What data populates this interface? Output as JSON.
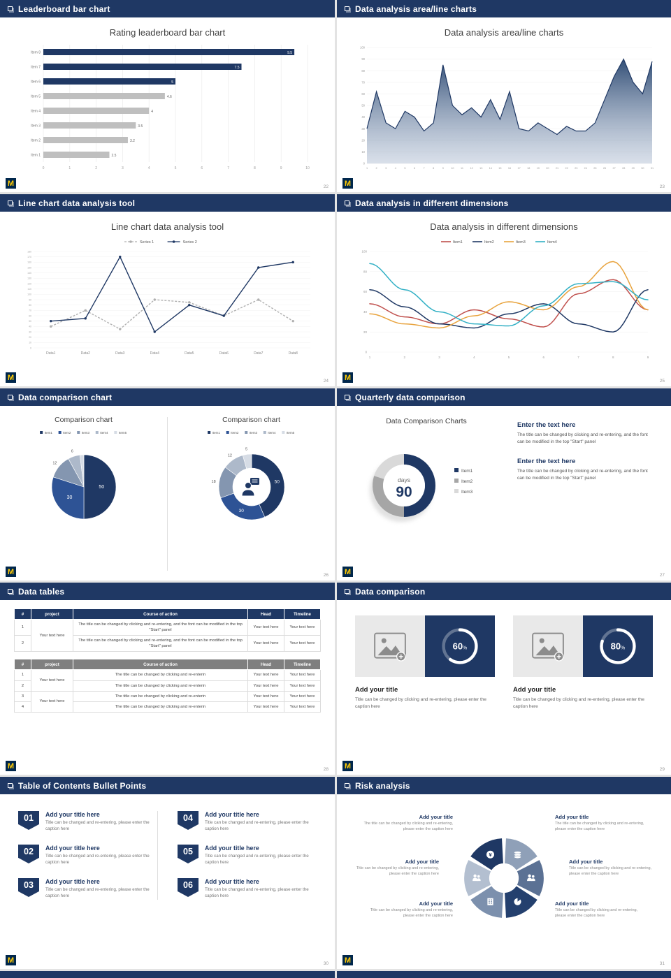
{
  "logo": {
    "letter": "M"
  },
  "icons": {
    "imgph": {
      "type": "imgph"
    }
  },
  "slides": [
    {
      "header": "Leaderboard bar chart",
      "page": "22",
      "title": "Rating leaderboard bar chart",
      "chart": {
        "type": "barh",
        "categories": [
          "Item 8",
          "Item 7",
          "Item 6",
          "Item 5",
          "Item 4",
          "Item 3",
          "Item 2",
          "Item 1"
        ],
        "values": [
          9.5,
          7.5,
          5,
          4.6,
          4,
          3.5,
          3.2,
          2.5
        ],
        "value_labels": [
          "9.5",
          "7.5",
          "5",
          "4.6",
          "4",
          "3.5",
          "3.2",
          "2.5"
        ],
        "colors": [
          "#1f3864",
          "#1f3864",
          "#1f3864",
          "#bfbfbf",
          "#bfbfbf",
          "#bfbfbf",
          "#bfbfbf",
          "#bfbfbf"
        ],
        "xmax": 10,
        "xticks": [
          0,
          1,
          2,
          3,
          4,
          5,
          6,
          7,
          8,
          9,
          10
        ]
      }
    },
    {
      "header": "Data analysis area/line charts",
      "page": "23",
      "title": "Data analysis area/line charts",
      "chart": {
        "type": "area",
        "values": [
          30,
          62,
          35,
          30,
          45,
          40,
          28,
          35,
          85,
          50,
          42,
          48,
          40,
          55,
          38,
          62,
          30,
          28,
          35,
          30,
          25,
          32,
          28,
          28,
          35,
          55,
          75,
          90,
          70,
          60,
          88
        ],
        "ymax": 100,
        "ystep": 10
      }
    },
    {
      "header": "Line chart data analysis tool",
      "page": "24",
      "title": "Line chart data analysis tool",
      "chart": {
        "type": "lines",
        "xlabels": [
          "Data1",
          "Data2",
          "Data3",
          "Data4",
          "Data5",
          "Data6",
          "Data7",
          "Data8"
        ],
        "ymax": 180,
        "ystep": 10,
        "series": [
          {
            "name": "Series 1",
            "color": "#b0b0b0",
            "dash": "3 2",
            "values": [
              40,
              70,
              35,
              90,
              85,
              60,
              90,
              50
            ]
          },
          {
            "name": "Series 2",
            "color": "#1f3864",
            "dash": "",
            "values": [
              50,
              55,
              170,
              30,
              80,
              60,
              150,
              160
            ]
          }
        ]
      }
    },
    {
      "header": "Data analysis in different dimensions",
      "page": "25",
      "title": "Data analysis in different dimensions",
      "chart": {
        "type": "multi",
        "xlabels": [
          "1",
          "2",
          "3",
          "4",
          "5",
          "6",
          "7",
          "8",
          "9"
        ],
        "ymax": 100,
        "ystep": 20,
        "series": [
          {
            "name": "Item1",
            "color": "#c0504d",
            "values": [
              48,
              35,
              28,
              42,
              33,
              25,
              58,
              72,
              42
            ]
          },
          {
            "name": "Item2",
            "color": "#1f3864",
            "values": [
              62,
              45,
              28,
              24,
              38,
              48,
              28,
              20,
              62
            ]
          },
          {
            "name": "Item3",
            "color": "#e8a33d",
            "values": [
              38,
              28,
              24,
              36,
              50,
              42,
              65,
              90,
              42
            ]
          },
          {
            "name": "Item4",
            "color": "#31b0c5",
            "values": [
              88,
              62,
              40,
              28,
              26,
              46,
              68,
              70,
              52
            ]
          }
        ]
      }
    },
    {
      "header": "Data comparison chart",
      "page": "26",
      "left": {
        "title": "Comparison chart",
        "chart": {
          "type": "pie",
          "values": [
            50,
            30,
            12,
            6,
            2
          ],
          "labels": [
            "50",
            "30",
            "12",
            "6",
            ""
          ],
          "colors": [
            "#1f3864",
            "#2e5395",
            "#8496b0",
            "#adb9ca",
            "#d6dce5"
          ],
          "legend": [
            "Item1",
            "Item2",
            "Item3",
            "Item4",
            "Item5"
          ]
        }
      },
      "right": {
        "title": "Comparison chart",
        "chart": {
          "type": "donut",
          "values": [
            50,
            30,
            18,
            12,
            5
          ],
          "labels": [
            "50",
            "30",
            "18",
            "12",
            "5"
          ],
          "colors": [
            "#1f3864",
            "#2e5395",
            "#8496b0",
            "#adb9ca",
            "#d6dce5"
          ],
          "legend": [
            "Item1",
            "Item2",
            "Item3",
            "Item4",
            "Item5"
          ]
        }
      }
    },
    {
      "header": "Quarterly data comparison",
      "page": "27",
      "chart_title": "Data Comparison Charts",
      "chart": {
        "type": "donut90",
        "values": [
          50,
          30,
          20
        ],
        "colors": [
          "#1f3864",
          "#a6a6a6",
          "#d9d9d9"
        ],
        "legend": [
          "Item1",
          "Item2",
          "Item3"
        ],
        "center_top": "days",
        "center_big": "90"
      },
      "blocks": [
        {
          "title": "Enter the text here",
          "body": "The title can be changed by clicking and re-entering, and the font can be modified in the top \"Start\" panel"
        },
        {
          "title": "Enter the text here",
          "body": "The title can be changed by clicking and re-entering, and the font can be modified in the top \"Start\" panel"
        }
      ]
    },
    {
      "header": "Data tables",
      "page": "28",
      "table1": {
        "headers": [
          "#",
          "project",
          "Course of action",
          "Head",
          "Timeline"
        ],
        "project": "Your text here",
        "rows": [
          {
            "num": "1",
            "course": "The title can be changed by clicking and re-entering, and the font can be modified in the top \"Start\" panel",
            "head": "Your text here",
            "timeline": "Your text here"
          },
          {
            "num": "2",
            "course": "The title can be changed by clicking and re-entering, and the font can be modified in the top \"Start\" panel",
            "head": "Your text here",
            "timeline": "Your text here"
          }
        ]
      },
      "table2": {
        "headers": [
          "#",
          "project",
          "Course of action",
          "Head",
          "Timeline"
        ],
        "projects": [
          "Your text here",
          "Your text here"
        ],
        "rows": [
          {
            "num": "1",
            "course": "The title can be changed by clicking and re-enterin",
            "head": "Your text here",
            "timeline": "Your text here"
          },
          {
            "num": "2",
            "course": "The title can be changed by clicking and re-enterin",
            "head": "Your text here",
            "timeline": "Your text here"
          },
          {
            "num": "3",
            "course": "The title can be changed by clicking and re-enterin",
            "head": "Your text here",
            "timeline": "Your text here"
          },
          {
            "num": "4",
            "course": "The title can be changed by clicking and re-enterin",
            "head": "Your text here",
            "timeline": "Your text here"
          }
        ]
      }
    },
    {
      "header": "Data comparison",
      "page": "29",
      "cards": [
        {
          "title": "Add your title",
          "caption": "Title can be changed by clicking and re-entering, please enter the caption here",
          "ring": {
            "type": "ring",
            "pct": 60
          }
        },
        {
          "title": "Add your title",
          "caption": "Title can be changed by clicking and re-entering, please enter the caption here",
          "ring": {
            "type": "ring",
            "pct": 80
          }
        }
      ]
    },
    {
      "header": "Table of Contents Bullet Points",
      "page": "30",
      "items": [
        {
          "num": "01",
          "title": "Add your title here",
          "caption": "Title can be changed and re-entering, please enter the caption here"
        },
        {
          "num": "02",
          "title": "Add your title here",
          "caption": "Title can be changed and re-entering, please enter the caption here"
        },
        {
          "num": "03",
          "title": "Add your title here",
          "caption": "Title can be changed and re-entering, please enter the caption here"
        },
        {
          "num": "04",
          "title": "Add your title here",
          "caption": "Title can be changed and re-entering, please enter the caption here"
        },
        {
          "num": "05",
          "title": "Add your title here",
          "caption": "Title can be changed and re-entering, please enter the caption here"
        },
        {
          "num": "06",
          "title": "Add your title here",
          "caption": "Title can be changed and re-entering, please enter the caption here"
        }
      ]
    },
    {
      "header": "Risk analysis",
      "page": "31",
      "wheel": {
        "type": "pinwheel",
        "colors": [
          "#1f3864",
          "#8fa0b8",
          "#5b7194",
          "#24406e",
          "#7c90ad",
          "#b3bfd0"
        ],
        "icons": [
          "money",
          "coins",
          "people",
          "pie",
          "building",
          "people"
        ]
      },
      "blocks": [
        {
          "title": "Add your title",
          "caption": "The title can be changed by clicking and re-entering, please enter the caption here"
        },
        {
          "title": "Add your title",
          "caption": "Title can be changed by clicking and re-entering, please enter the caption here"
        },
        {
          "title": "Add your title",
          "caption": "Title can be changed by clicking and re-entering, please enter the caption here"
        },
        {
          "title": "Add your title",
          "caption": "The title can be changed by clicking and re-entering, please enter the caption here"
        },
        {
          "title": "Add your title",
          "caption": "Title can be changed by clicking and re-entering, please enter the caption here"
        },
        {
          "title": "Add your title",
          "caption": "Title can be changed by clicking and re-entering, please enter the caption here"
        }
      ]
    }
  ]
}
